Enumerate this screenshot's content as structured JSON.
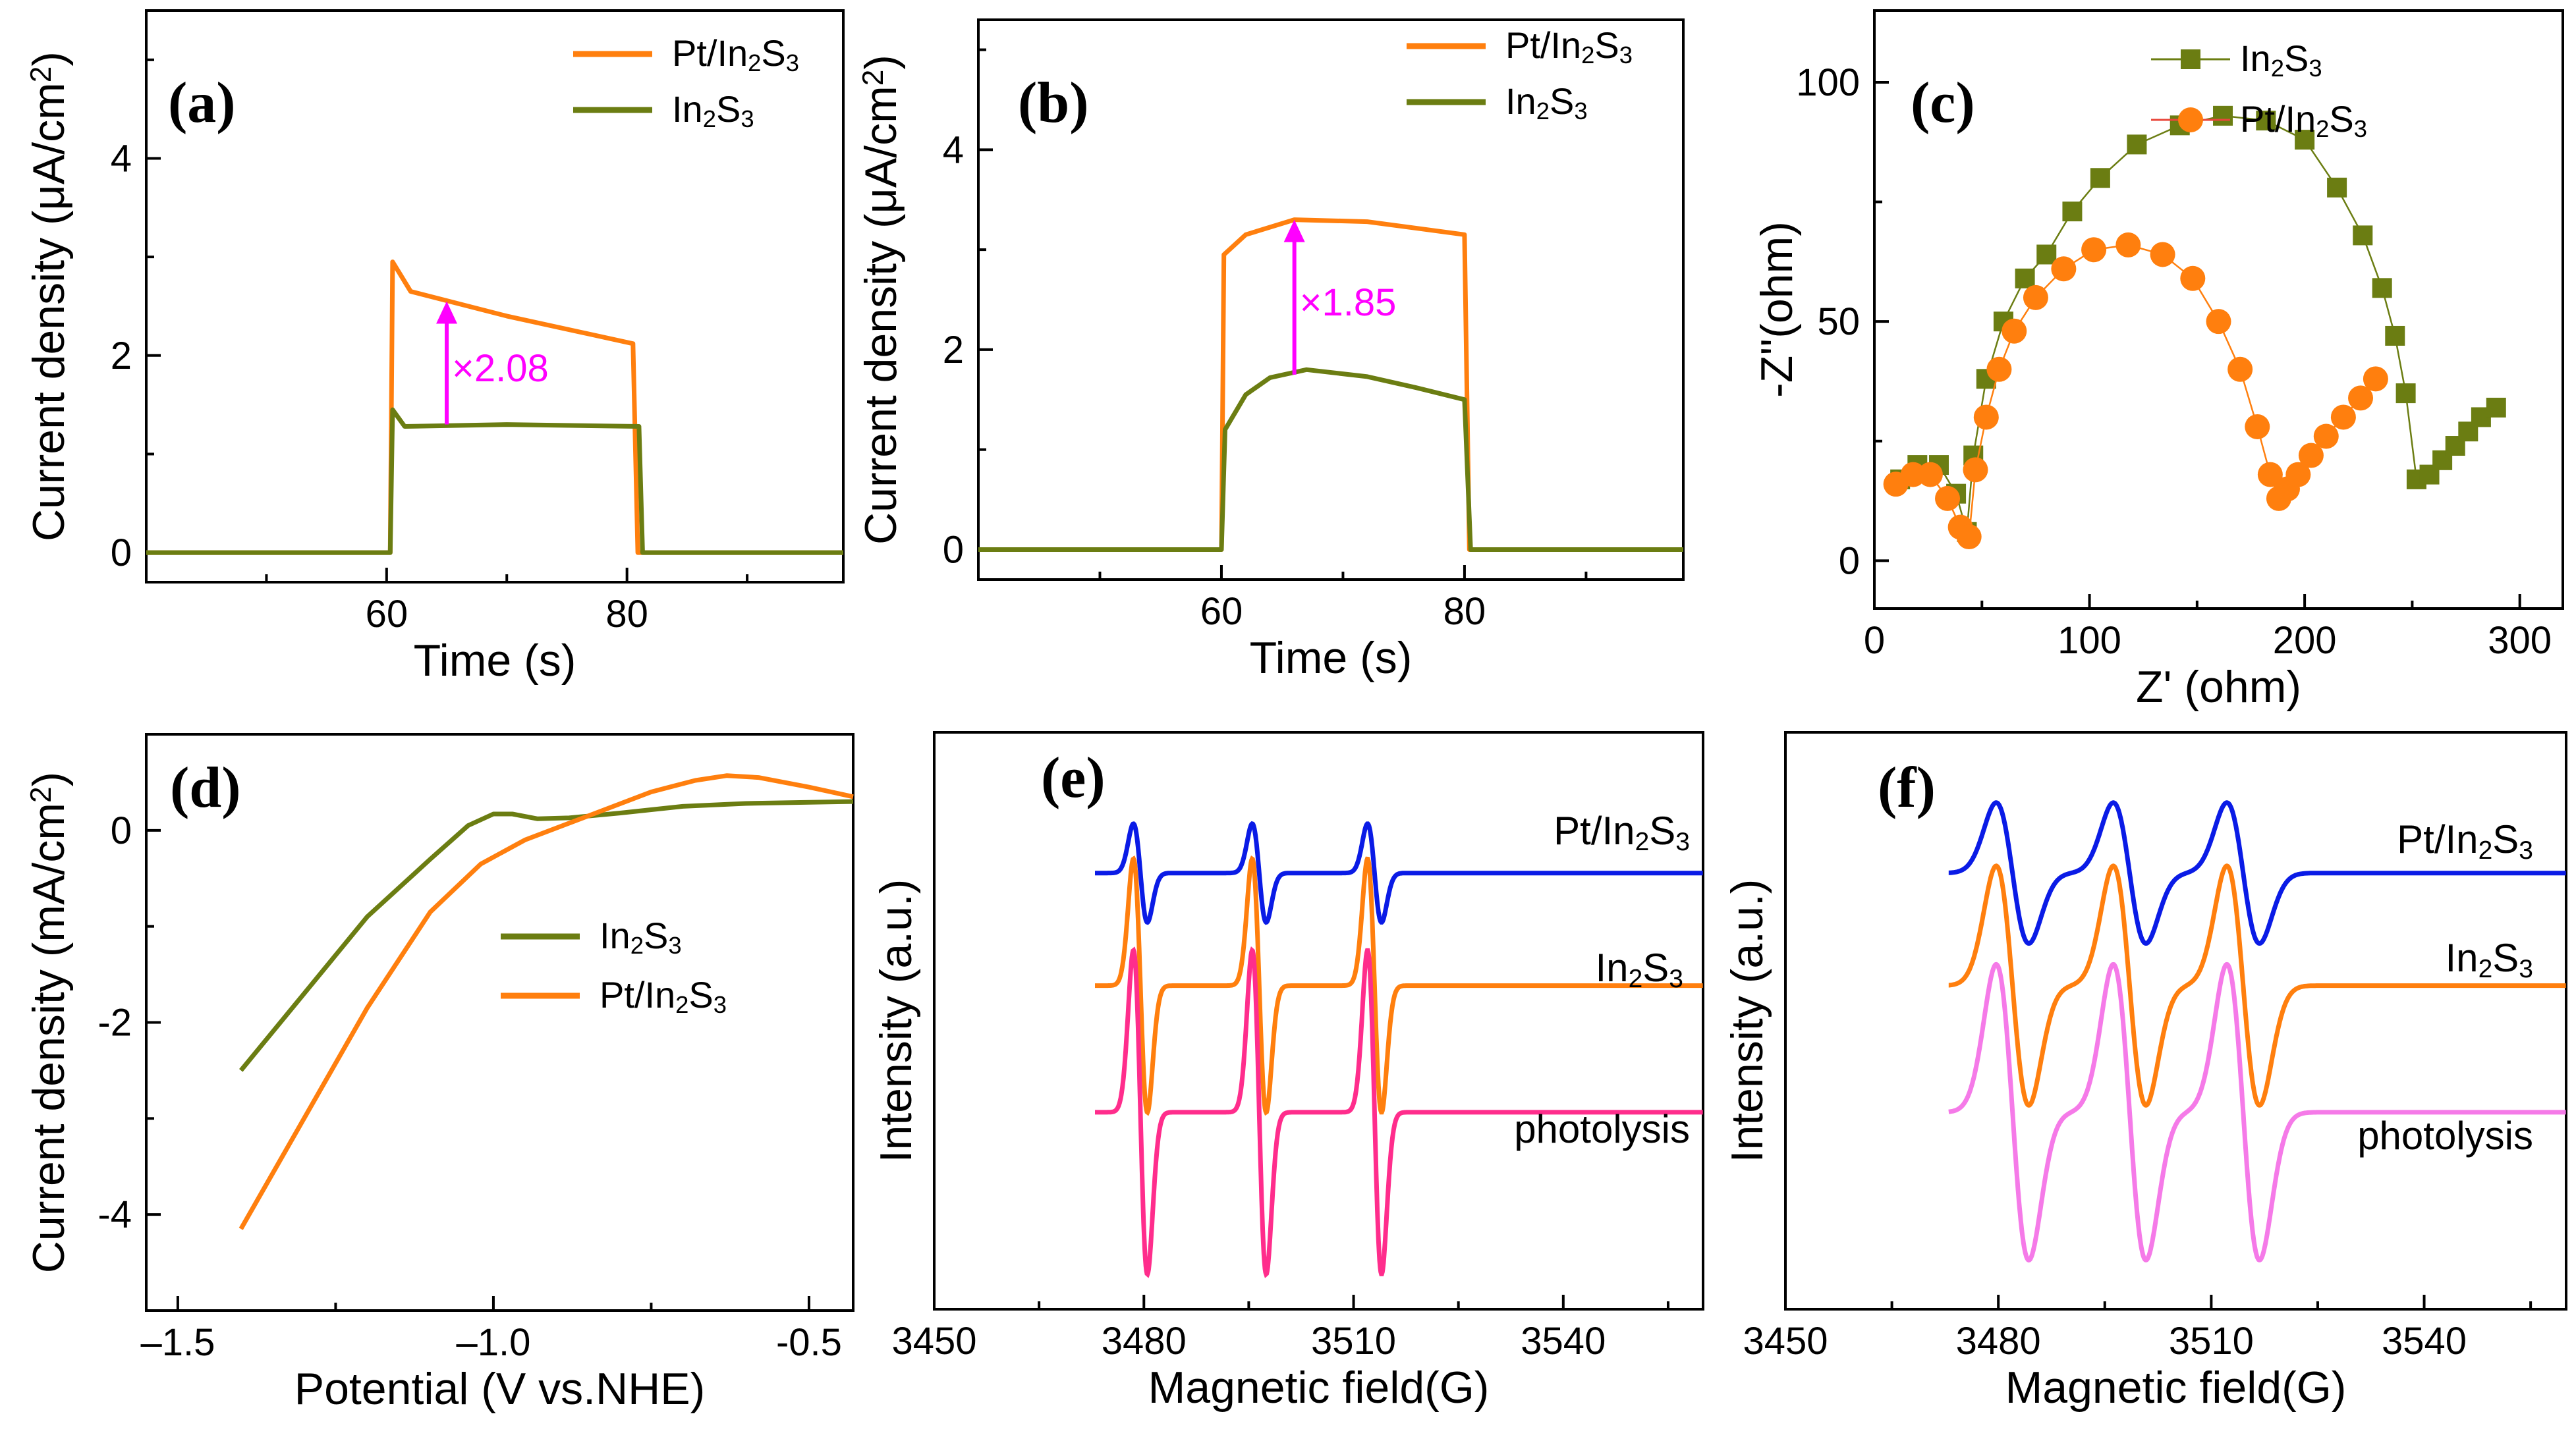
{
  "colors": {
    "orange": "#ff7f0e",
    "olive": "#6b7d12",
    "blue": "#0a1be6",
    "pink": "#ff2d8c",
    "lightpink": "#f57ae8",
    "magenta": "#ff00ff",
    "red": "#e8473b"
  },
  "chart_data": [
    {
      "id": "a",
      "label": "(a)",
      "type": "line",
      "xlabel": "Time (s)",
      "ylabel": "Current density (μA/cm²)",
      "xlim": [
        40,
        98
      ],
      "ylim": [
        -0.3,
        5.5
      ],
      "xticks": [
        60,
        80
      ],
      "yticks": [
        0,
        2,
        4
      ],
      "series": [
        {
          "name": "Pt/In₂S₃",
          "color": "orange",
          "x": [
            40,
            60.3,
            60.5,
            62,
            70,
            80.5,
            80.9,
            98
          ],
          "y": [
            0,
            0,
            2.95,
            2.65,
            2.4,
            2.12,
            0,
            0
          ]
        },
        {
          "name": "In₂S₃",
          "color": "olive",
          "x": [
            40,
            60.3,
            60.5,
            61.5,
            70,
            81,
            81.3,
            98
          ],
          "y": [
            0,
            0,
            1.45,
            1.28,
            1.3,
            1.28,
            0,
            0
          ]
        }
      ],
      "annotation": {
        "text": "×2.08",
        "x": 65,
        "y_from": 1.3,
        "y_to": 2.55
      }
    },
    {
      "id": "b",
      "label": "(b)",
      "type": "line",
      "xlabel": "Time (s)",
      "ylabel": "Current density (μA/cm²)",
      "xlim": [
        40,
        98
      ],
      "ylim": [
        -0.3,
        5.3
      ],
      "xticks": [
        60,
        80
      ],
      "yticks": [
        0,
        2,
        4
      ],
      "series": [
        {
          "name": "Pt/In₂S₃",
          "color": "orange",
          "x": [
            40,
            60,
            60.2,
            62,
            66,
            72,
            80,
            80.4,
            98
          ],
          "y": [
            0,
            0,
            2.95,
            3.15,
            3.3,
            3.28,
            3.15,
            0,
            0
          ]
        },
        {
          "name": "In₂S₃",
          "color": "olive",
          "x": [
            40,
            60,
            60.3,
            62,
            64,
            67,
            72,
            76,
            80,
            80.5,
            98
          ],
          "y": [
            0,
            0,
            1.2,
            1.55,
            1.72,
            1.8,
            1.73,
            1.62,
            1.5,
            0,
            0
          ]
        }
      ],
      "annotation": {
        "text": "×1.85",
        "x": 66,
        "y_from": 1.75,
        "y_to": 3.3
      }
    },
    {
      "id": "c",
      "label": "(c)",
      "type": "scatter",
      "xlabel": "Z' (ohm)",
      "ylabel": "-Z''(ohm)",
      "xlim": [
        0,
        320
      ],
      "ylim": [
        -10,
        115
      ],
      "xticks": [
        0,
        100,
        200,
        300
      ],
      "yticks": [
        0,
        50,
        100
      ],
      "series": [
        {
          "name": "In₂S₃",
          "color": "olive",
          "marker": "square",
          "x": [
            12,
            20,
            30,
            38,
            43,
            46,
            52,
            60,
            70,
            80,
            92,
            105,
            122,
            142,
            162,
            182,
            200,
            215,
            227,
            236,
            242,
            247,
            252,
            258,
            264,
            270,
            276,
            282,
            289
          ],
          "y": [
            17,
            20,
            20,
            14,
            6,
            22,
            38,
            50,
            59,
            64,
            73,
            80,
            87,
            91,
            93,
            92,
            88,
            78,
            68,
            57,
            47,
            35,
            17,
            18,
            21,
            24,
            27,
            30,
            32
          ]
        },
        {
          "name": "Pt/In₂S₃",
          "color": "orange",
          "marker": "circle",
          "x": [
            10,
            18,
            26,
            34,
            40,
            44,
            47,
            52,
            58,
            65,
            75,
            88,
            102,
            118,
            134,
            148,
            160,
            170,
            178,
            184,
            188,
            192,
            197,
            203,
            210,
            218,
            226,
            233
          ],
          "y": [
            16,
            18,
            18,
            13,
            7,
            5,
            19,
            30,
            40,
            48,
            55,
            61,
            65,
            66,
            64,
            59,
            50,
            40,
            28,
            18,
            13,
            15,
            18,
            22,
            26,
            30,
            34,
            38
          ]
        }
      ]
    },
    {
      "id": "d",
      "label": "(d)",
      "type": "line",
      "xlabel": "Potential (V vs.NHE)",
      "ylabel": "Current density (mA/cm²)",
      "xlim": [
        -1.55,
        -0.43
      ],
      "ylim": [
        -5.0,
        1.0
      ],
      "xticks": [
        -1.5,
        -1.0,
        -0.5
      ],
      "xticklabels": [
        "–1.5",
        "–1.0",
        "-0.5"
      ],
      "yticks": [
        -4,
        -2,
        0
      ],
      "series": [
        {
          "name": "In₂S₃",
          "color": "olive",
          "x": [
            -1.4,
            -1.3,
            -1.2,
            -1.1,
            -1.04,
            -1.0,
            -0.97,
            -0.93,
            -0.88,
            -0.8,
            -0.7,
            -0.6,
            -0.43
          ],
          "y": [
            -2.5,
            -1.7,
            -0.9,
            -0.3,
            0.05,
            0.17,
            0.17,
            0.12,
            0.13,
            0.18,
            0.25,
            0.28,
            0.3
          ]
        },
        {
          "name": "Pt/In₂S₃",
          "color": "orange",
          "x": [
            -1.4,
            -1.3,
            -1.2,
            -1.1,
            -1.02,
            -0.95,
            -0.85,
            -0.75,
            -0.68,
            -0.63,
            -0.58,
            -0.5,
            -0.43
          ],
          "y": [
            -4.15,
            -3.0,
            -1.85,
            -0.85,
            -0.35,
            -0.1,
            0.15,
            0.4,
            0.52,
            0.57,
            0.55,
            0.45,
            0.35
          ]
        }
      ]
    },
    {
      "id": "e",
      "label": "(e)",
      "type": "line",
      "xlabel": "Magnetic field(G)",
      "ylabel": "Intensity (a.u.)",
      "xlim": [
        3450,
        3560
      ],
      "xticks": [
        3450,
        3480,
        3510,
        3540
      ],
      "yticks_shown": false,
      "peak_centers": [
        3479.5,
        3496.5,
        3513.0
      ],
      "peak_width": 1.0,
      "series": [
        {
          "name": "Pt/In₂S₃",
          "color": "blue",
          "baseline": 0.8,
          "amplitude": 0.35
        },
        {
          "name": "In₂S₃",
          "color": "orange",
          "baseline": 0.0,
          "amplitude": 0.9
        },
        {
          "name": "photolysis",
          "color": "pink",
          "baseline": -0.9,
          "amplitude": 1.15
        }
      ],
      "ylim": [
        -2.3,
        1.8
      ]
    },
    {
      "id": "f",
      "label": "(f)",
      "type": "line",
      "xlabel": "Magnetic field(G)",
      "ylabel": "Intensity (a.u.)",
      "xlim": [
        3450,
        3560
      ],
      "xticks": [
        3450,
        3480,
        3510,
        3540
      ],
      "yticks_shown": false,
      "peak_centers": [
        3482.0,
        3498.5,
        3514.5
      ],
      "peak_width": 2.3,
      "series": [
        {
          "name": "Pt/In₂S₃",
          "color": "blue",
          "baseline": 0.8,
          "amplitude": 0.5
        },
        {
          "name": "In₂S₃",
          "color": "orange",
          "baseline": 0.0,
          "amplitude": 0.85
        },
        {
          "name": "photolysis",
          "color": "lightpink",
          "baseline": -0.9,
          "amplitude": 1.05
        }
      ],
      "ylim": [
        -2.3,
        1.8
      ]
    }
  ]
}
